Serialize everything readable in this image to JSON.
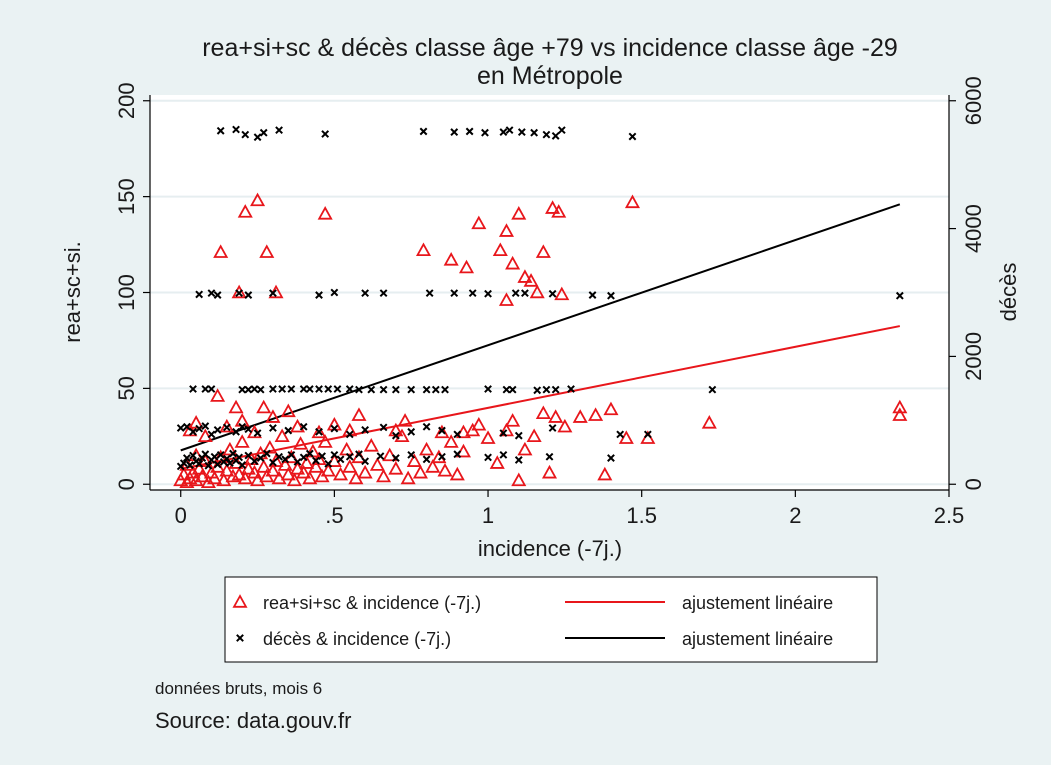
{
  "chart_data": {
    "type": "scatter",
    "title": "rea+si+sc & décès classe âge +79 vs incidence classe âge -29",
    "subtitle": "en Métropole",
    "xlabel": "incidence (-7j.)",
    "ylabel_left": "rea+sc+si.",
    "ylabel_right": "décès",
    "xlim": [
      -0.1,
      2.5
    ],
    "ylim_left": [
      -3,
      203
    ],
    "ylim_right": [
      -90,
      6090
    ],
    "x_ticks": [
      "0",
      ".5",
      "1",
      "1.5",
      "2",
      "2.5"
    ],
    "x_tick_values": [
      0,
      0.5,
      1,
      1.5,
      2,
      2.5
    ],
    "y_left_ticks": [
      "0",
      "50",
      "100",
      "150",
      "200"
    ],
    "y_left_tick_values": [
      0,
      50,
      100,
      150,
      200
    ],
    "y_right_ticks": [
      "0",
      "2000",
      "4000",
      "6000"
    ],
    "y_right_tick_values": [
      0,
      2000,
      4000,
      6000
    ],
    "grid": true,
    "colors": {
      "rea": "#e8161b",
      "deces": "#000000",
      "plot_bg": "#ffffff",
      "page_bg": "#eaf2f3",
      "grid": "#e6eef0"
    },
    "series": [
      {
        "name": "rea+si+sc & incidence (-7j.)",
        "axis": "left",
        "marker": "triangle",
        "points": [
          [
            0,
            2
          ],
          [
            0.01,
            5
          ],
          [
            0.02,
            10
          ],
          [
            0.02,
            1
          ],
          [
            0.03,
            3
          ],
          [
            0.04,
            6
          ],
          [
            0.05,
            15
          ],
          [
            0.05,
            2
          ],
          [
            0.06,
            8
          ],
          [
            0.07,
            4
          ],
          [
            0.08,
            12
          ],
          [
            0.09,
            1
          ],
          [
            0.1,
            6
          ],
          [
            0.11,
            3
          ],
          [
            0.12,
            9
          ],
          [
            0.13,
            14
          ],
          [
            0.14,
            2
          ],
          [
            0.15,
            7
          ],
          [
            0.16,
            18
          ],
          [
            0.17,
            4
          ],
          [
            0.18,
            11
          ],
          [
            0.19,
            5
          ],
          [
            0.2,
            22
          ],
          [
            0.21,
            3
          ],
          [
            0.22,
            8
          ],
          [
            0.23,
            13
          ],
          [
            0.24,
            6
          ],
          [
            0.25,
            2
          ],
          [
            0.26,
            16
          ],
          [
            0.27,
            9
          ],
          [
            0.28,
            4
          ],
          [
            0.29,
            19
          ],
          [
            0.3,
            7
          ],
          [
            0.31,
            12
          ],
          [
            0.32,
            3
          ],
          [
            0.33,
            25
          ],
          [
            0.34,
            10
          ],
          [
            0.35,
            5
          ],
          [
            0.36,
            14
          ],
          [
            0.37,
            2
          ],
          [
            0.38,
            8
          ],
          [
            0.39,
            21
          ],
          [
            0.4,
            6
          ],
          [
            0.41,
            11
          ],
          [
            0.42,
            3
          ],
          [
            0.43,
            17
          ],
          [
            0.44,
            9
          ],
          [
            0.45,
            13
          ],
          [
            0.46,
            4
          ],
          [
            0.47,
            22
          ],
          [
            0.48,
            7
          ],
          [
            0.5,
            12
          ],
          [
            0.52,
            5
          ],
          [
            0.54,
            18
          ],
          [
            0.55,
            9
          ],
          [
            0.57,
            3
          ],
          [
            0.58,
            14
          ],
          [
            0.6,
            6
          ],
          [
            0.62,
            20
          ],
          [
            0.64,
            10
          ],
          [
            0.66,
            4
          ],
          [
            0.68,
            15
          ],
          [
            0.7,
            8
          ],
          [
            0.72,
            25
          ],
          [
            0.74,
            3
          ],
          [
            0.76,
            12
          ],
          [
            0.78,
            6
          ],
          [
            0.8,
            18
          ],
          [
            0.82,
            9
          ],
          [
            0.84,
            14
          ],
          [
            0.86,
            7
          ],
          [
            0.88,
            22
          ],
          [
            0.9,
            5
          ],
          [
            0.92,
            17
          ],
          [
            0.95,
            28
          ],
          [
            1,
            24
          ],
          [
            1.03,
            11
          ],
          [
            1.06,
            28
          ],
          [
            1.08,
            33
          ],
          [
            1.1,
            2
          ],
          [
            1.12,
            18
          ],
          [
            1.15,
            25
          ],
          [
            1.18,
            37
          ],
          [
            1.2,
            6
          ],
          [
            1.22,
            35
          ],
          [
            1.25,
            30
          ],
          [
            1.3,
            35
          ],
          [
            1.35,
            36
          ],
          [
            1.38,
            5
          ],
          [
            1.4,
            39
          ],
          [
            1.45,
            24
          ],
          [
            1.52,
            24
          ],
          [
            1.72,
            32
          ],
          [
            2.34,
            40
          ],
          [
            2.34,
            36
          ],
          [
            0.03,
            28
          ],
          [
            0.05,
            32
          ],
          [
            0.08,
            25
          ],
          [
            0.12,
            46
          ],
          [
            0.15,
            30
          ],
          [
            0.18,
            40
          ],
          [
            0.2,
            33
          ],
          [
            0.24,
            27
          ],
          [
            0.27,
            40
          ],
          [
            0.3,
            35
          ],
          [
            0.35,
            38
          ],
          [
            0.38,
            30
          ],
          [
            0.45,
            27
          ],
          [
            0.5,
            31
          ],
          [
            0.55,
            28
          ],
          [
            0.58,
            36
          ],
          [
            0.7,
            28
          ],
          [
            0.73,
            33
          ],
          [
            0.85,
            27
          ],
          [
            0.92,
            27
          ],
          [
            0.97,
            31
          ],
          [
            0.13,
            121
          ],
          [
            0.19,
            100
          ],
          [
            0.21,
            142
          ],
          [
            0.25,
            148
          ],
          [
            0.28,
            121
          ],
          [
            0.31,
            100
          ],
          [
            0.47,
            141
          ],
          [
            0.79,
            122
          ],
          [
            0.88,
            117
          ],
          [
            0.93,
            113
          ],
          [
            0.97,
            136
          ],
          [
            1.04,
            122
          ],
          [
            1.06,
            132
          ],
          [
            1.06,
            96
          ],
          [
            1.08,
            115
          ],
          [
            1.1,
            141
          ],
          [
            1.12,
            108
          ],
          [
            1.14,
            106
          ],
          [
            1.16,
            100
          ],
          [
            1.18,
            121
          ],
          [
            1.21,
            144
          ],
          [
            1.23,
            142
          ],
          [
            1.24,
            99
          ],
          [
            1.47,
            147
          ]
        ]
      },
      {
        "name": "décès & incidence (-7j.)",
        "axis": "right",
        "marker": "x",
        "points": [
          [
            0,
            280
          ],
          [
            0.01,
            330
          ],
          [
            0.02,
            410
          ],
          [
            0.03,
            300
          ],
          [
            0.04,
            450
          ],
          [
            0.05,
            360
          ],
          [
            0.06,
            320
          ],
          [
            0.07,
            410
          ],
          [
            0.08,
            470
          ],
          [
            0.09,
            290
          ],
          [
            0.1,
            380
          ],
          [
            0.11,
            430
          ],
          [
            0.12,
            310
          ],
          [
            0.13,
            460
          ],
          [
            0.14,
            350
          ],
          [
            0.15,
            400
          ],
          [
            0.16,
            330
          ],
          [
            0.17,
            480
          ],
          [
            0.18,
            370
          ],
          [
            0.19,
            420
          ],
          [
            0.2,
            300
          ],
          [
            0.22,
            450
          ],
          [
            0.24,
            360
          ],
          [
            0.26,
            410
          ],
          [
            0.28,
            480
          ],
          [
            0.3,
            340
          ],
          [
            0.32,
            430
          ],
          [
            0.34,
            390
          ],
          [
            0.36,
            460
          ],
          [
            0.38,
            350
          ],
          [
            0.4,
            420
          ],
          [
            0.42,
            480
          ],
          [
            0.44,
            370
          ],
          [
            0.46,
            440
          ],
          [
            0.48,
            320
          ],
          [
            0.5,
            460
          ],
          [
            0.52,
            390
          ],
          [
            0.55,
            430
          ],
          [
            0.58,
            470
          ],
          [
            0.6,
            360
          ],
          [
            0.65,
            440
          ],
          [
            0.7,
            410
          ],
          [
            0.75,
            460
          ],
          [
            0.8,
            390
          ],
          [
            0.85,
            430
          ],
          [
            0.9,
            470
          ],
          [
            1,
            420
          ],
          [
            1.05,
            460
          ],
          [
            1.1,
            380
          ],
          [
            1.2,
            430
          ],
          [
            1.4,
            410
          ],
          [
            0,
            880
          ],
          [
            0.02,
            900
          ],
          [
            0.04,
            820
          ],
          [
            0.06,
            870
          ],
          [
            0.08,
            910
          ],
          [
            0.1,
            780
          ],
          [
            0.12,
            850
          ],
          [
            0.15,
            890
          ],
          [
            0.18,
            820
          ],
          [
            0.2,
            900
          ],
          [
            0.22,
            860
          ],
          [
            0.25,
            800
          ],
          [
            0.3,
            880
          ],
          [
            0.35,
            840
          ],
          [
            0.4,
            900
          ],
          [
            0.45,
            820
          ],
          [
            0.5,
            870
          ],
          [
            0.55,
            780
          ],
          [
            0.6,
            850
          ],
          [
            0.66,
            890
          ],
          [
            0.7,
            760
          ],
          [
            0.75,
            820
          ],
          [
            0.8,
            900
          ],
          [
            0.85,
            840
          ],
          [
            0.9,
            780
          ],
          [
            1.05,
            800
          ],
          [
            1.1,
            760
          ],
          [
            1.21,
            880
          ],
          [
            1.43,
            780
          ],
          [
            1.52,
            780
          ],
          [
            0.04,
            1490
          ],
          [
            0.08,
            1490
          ],
          [
            0.1,
            1490
          ],
          [
            0.2,
            1480
          ],
          [
            0.22,
            1480
          ],
          [
            0.24,
            1490
          ],
          [
            0.26,
            1480
          ],
          [
            0.3,
            1490
          ],
          [
            0.33,
            1490
          ],
          [
            0.36,
            1490
          ],
          [
            0.4,
            1490
          ],
          [
            0.42,
            1490
          ],
          [
            0.45,
            1490
          ],
          [
            0.48,
            1490
          ],
          [
            0.51,
            1490
          ],
          [
            0.55,
            1490
          ],
          [
            0.58,
            1480
          ],
          [
            0.62,
            1480
          ],
          [
            0.66,
            1480
          ],
          [
            0.7,
            1480
          ],
          [
            0.75,
            1480
          ],
          [
            0.8,
            1480
          ],
          [
            0.83,
            1480
          ],
          [
            0.86,
            1480
          ],
          [
            1,
            1490
          ],
          [
            1.06,
            1480
          ],
          [
            1.08,
            1480
          ],
          [
            1.16,
            1470
          ],
          [
            1.19,
            1480
          ],
          [
            1.22,
            1480
          ],
          [
            1.27,
            1490
          ],
          [
            1.73,
            1480
          ],
          [
            0.06,
            2970
          ],
          [
            0.1,
            2990
          ],
          [
            0.12,
            2960
          ],
          [
            0.19,
            2990
          ],
          [
            0.22,
            2960
          ],
          [
            0.3,
            2990
          ],
          [
            0.45,
            2960
          ],
          [
            0.5,
            3000
          ],
          [
            0.6,
            2990
          ],
          [
            0.66,
            2990
          ],
          [
            0.81,
            2990
          ],
          [
            0.89,
            2990
          ],
          [
            0.95,
            2990
          ],
          [
            1,
            2980
          ],
          [
            1.09,
            2990
          ],
          [
            1.12,
            2990
          ],
          [
            1.21,
            2980
          ],
          [
            1.34,
            2960
          ],
          [
            1.4,
            2950
          ],
          [
            2.34,
            2950
          ],
          [
            0.13,
            5530
          ],
          [
            0.18,
            5550
          ],
          [
            0.21,
            5470
          ],
          [
            0.25,
            5430
          ],
          [
            0.27,
            5500
          ],
          [
            0.32,
            5540
          ],
          [
            0.47,
            5480
          ],
          [
            0.79,
            5520
          ],
          [
            0.89,
            5510
          ],
          [
            0.94,
            5520
          ],
          [
            0.99,
            5500
          ],
          [
            1.05,
            5510
          ],
          [
            1.07,
            5540
          ],
          [
            1.11,
            5510
          ],
          [
            1.15,
            5500
          ],
          [
            1.19,
            5470
          ],
          [
            1.22,
            5450
          ],
          [
            1.24,
            5540
          ],
          [
            1.47,
            5440
          ]
        ]
      }
    ],
    "fits": [
      {
        "name": "ajustement linéaire",
        "series": "rea+si+sc & incidence (-7j.)",
        "axis": "left",
        "color": "#e8161b",
        "x": [
          0,
          2.34
        ],
        "y": [
          8,
          82.5
        ]
      },
      {
        "name": "ajustement linéaire",
        "series": "décès & incidence (-7j.)",
        "axis": "right",
        "color": "#000000",
        "x": [
          0,
          2.34
        ],
        "y": [
          530,
          4380
        ]
      }
    ],
    "legend": {
      "placement": "bottom",
      "entries": [
        {
          "label": "rea+si+sc & incidence (-7j.)",
          "marker": "triangle",
          "color": "#e8161b"
        },
        {
          "label": "ajustement linéaire",
          "marker": "line",
          "color": "#e8161b"
        },
        {
          "label": "décès & incidence (-7j.)",
          "marker": "x",
          "color": "#000000"
        },
        {
          "label": "ajustement linéaire",
          "marker": "line",
          "color": "#000000"
        }
      ]
    },
    "note": "données bruts, mois 6",
    "source": "Source: data.gouv.fr"
  }
}
